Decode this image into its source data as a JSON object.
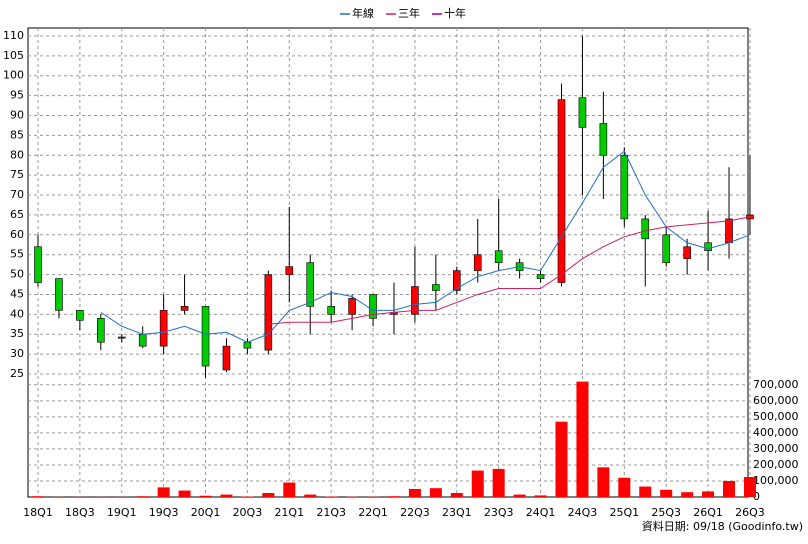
{
  "chart_data": {
    "type": "candlestick",
    "categories": [
      "18Q1",
      null,
      "18Q3",
      null,
      "19Q1",
      null,
      "19Q3",
      null,
      "20Q1",
      null,
      "20Q3",
      null,
      "21Q1",
      null,
      "21Q3",
      null,
      "22Q1",
      null,
      "22Q3",
      null,
      "23Q1",
      null,
      "23Q3",
      null,
      "24Q1",
      null,
      "24Q3",
      null,
      "25Q1",
      null,
      "25Q3",
      null,
      "26Q1",
      null,
      "26Q3"
    ],
    "open": [
      57,
      49,
      41,
      39,
      34,
      35,
      32,
      41,
      42,
      26,
      33,
      31,
      50,
      53,
      42,
      40,
      45,
      40,
      40,
      47.5,
      46,
      51,
      56,
      53,
      50,
      48,
      94.5,
      88,
      80,
      64,
      60,
      54,
      58,
      58,
      64
    ],
    "high": [
      60,
      49,
      41,
      40,
      35,
      37,
      45,
      50,
      42,
      34,
      34,
      51,
      67,
      55,
      46,
      45,
      45,
      48,
      57,
      55,
      52,
      64,
      69,
      54,
      51,
      98,
      110,
      96,
      82,
      65,
      62,
      59,
      66,
      77,
      80
    ],
    "low": [
      47,
      39,
      36,
      31,
      33,
      31.5,
      30,
      40,
      24,
      25.5,
      30,
      30,
      43,
      35,
      38,
      36,
      37,
      35,
      38,
      41,
      45,
      48,
      51,
      49,
      48,
      47,
      70,
      69,
      62,
      47,
      52,
      50,
      51,
      54,
      60
    ],
    "close": [
      48,
      41,
      38.5,
      33,
      34.3,
      32,
      41,
      42,
      27,
      32,
      31.5,
      50,
      52,
      42,
      40,
      44,
      39,
      40.5,
      47,
      46,
      51,
      55,
      53,
      51,
      49,
      94,
      87,
      80,
      64,
      59,
      53,
      57,
      56,
      64,
      65
    ],
    "up_color": "#ff0000",
    "down_color": "#00cc00",
    "series": [
      {
        "name": "年線",
        "color": "#1e6fd0",
        "values": [
          null,
          null,
          null,
          40.5,
          37,
          35,
          35.5,
          37,
          35,
          35.5,
          33,
          35,
          41,
          43,
          45.5,
          44.5,
          41,
          41,
          42.5,
          43,
          46.5,
          49.5,
          51,
          52,
          51,
          59.5,
          68,
          77,
          81,
          70,
          62,
          58,
          56.5,
          58,
          60
        ]
      },
      {
        "name": "三年",
        "color": "#d02060",
        "values": [
          null,
          null,
          null,
          null,
          null,
          null,
          null,
          null,
          null,
          null,
          null,
          37.5,
          38,
          38,
          38,
          39,
          40,
          40.5,
          41,
          41,
          43,
          45,
          46.5,
          46.5,
          46.5,
          50,
          54,
          57,
          59.5,
          61,
          62,
          62.5,
          63,
          63.5,
          64.5
        ]
      },
      {
        "name": "十年",
        "color": "#a000a0",
        "values": [
          null,
          null,
          null,
          null,
          null,
          null,
          null,
          null,
          null,
          null,
          null,
          null,
          null,
          null,
          null,
          null,
          null,
          null,
          null,
          null,
          null,
          null,
          null,
          null,
          null,
          null,
          null,
          null,
          null,
          null,
          null,
          null,
          null,
          null,
          null
        ]
      }
    ],
    "ylim": [
      25,
      112
    ],
    "yticks": [
      25,
      30,
      35,
      40,
      45,
      50,
      55,
      60,
      65,
      70,
      75,
      80,
      85,
      90,
      95,
      100,
      105,
      110
    ],
    "volume": {
      "color": "#ff0000",
      "values": [
        5000,
        1000,
        1000,
        1000,
        1000,
        5000,
        60000,
        40000,
        8000,
        15000,
        3000,
        25000,
        90000,
        15000,
        3000,
        2000,
        2000,
        5000,
        50000,
        55000,
        25000,
        165000,
        175000,
        15000,
        10000,
        470000,
        720000,
        185000,
        120000,
        65000,
        45000,
        30000,
        35000,
        100000,
        125000
      ],
      "ylim": [
        0,
        730000
      ],
      "yticks": [
        0,
        {
          "value": 100000,
          "label": "100,000"
        },
        {
          "value": 200000,
          "label": "200,000"
        },
        {
          "value": 300000,
          "label": "300,000"
        },
        {
          "value": 400000,
          "label": "400,000"
        },
        {
          "value": 500000,
          "label": "500,000"
        },
        {
          "value": 600000,
          "label": "600,000"
        },
        {
          "value": 700000,
          "label": "700,000"
        }
      ]
    },
    "grid": true,
    "legend": "top",
    "source": "資料日期: 09/18 (Goodinfo.tw)"
  }
}
